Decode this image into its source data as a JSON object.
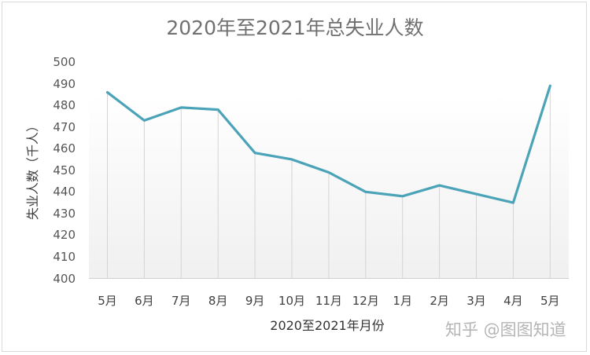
{
  "chart_data": {
    "type": "line",
    "title": "2020年至2021年总失业人数",
    "xlabel": "2020至2021年月份",
    "ylabel": "失业人数（千人）",
    "ylim": [
      400,
      500
    ],
    "yticks": [
      "500",
      "490",
      "480",
      "470",
      "460",
      "450",
      "440",
      "430",
      "420",
      "410",
      "400"
    ],
    "categories": [
      "5月",
      "6月",
      "7月",
      "8月",
      "9月",
      "10月",
      "11月",
      "12月",
      "1月",
      "2月",
      "3月",
      "4月",
      "5月"
    ],
    "series": [
      {
        "name": "总失业人数",
        "values": [
          486,
          473,
          479,
          478,
          458,
          455,
          449,
          440,
          438,
          443,
          439,
          435,
          489
        ],
        "color": "#4ba3b8"
      }
    ],
    "grid": false,
    "drop_lines": true,
    "legend": "none"
  },
  "watermark": "知乎 @图图知道"
}
